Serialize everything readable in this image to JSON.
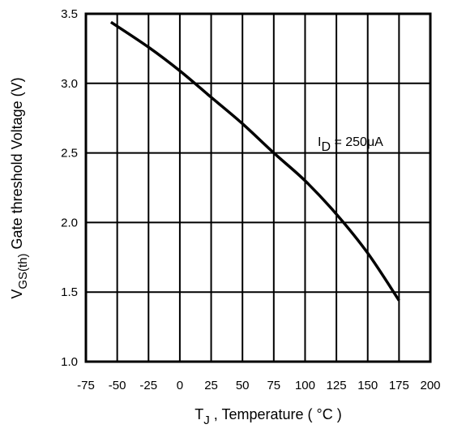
{
  "chart_data": {
    "type": "line",
    "xlabel_main": "T",
    "xlabel_sub": "J",
    "xlabel_rest": " , Temperature ( °C )",
    "ylabel_main": "V",
    "ylabel_sub": "GS(th)",
    "ylabel_rest": " Gate threshold Voltage (V)",
    "xlim": [
      -75,
      200
    ],
    "ylim": [
      1.0,
      3.5
    ],
    "x_ticks": [
      -75,
      -50,
      -25,
      0,
      25,
      50,
      75,
      100,
      125,
      150,
      175,
      200
    ],
    "y_ticks": [
      1.0,
      1.5,
      2.0,
      2.5,
      3.0,
      3.5
    ],
    "y_tick_labels": [
      "1.0",
      "1.5",
      "2.0",
      "2.5",
      "3.0",
      "3.5"
    ],
    "grid": true,
    "series": [
      {
        "x": [
          -55,
          -25,
          0,
          25,
          50,
          75,
          100,
          125,
          150,
          175
        ],
        "y": [
          3.44,
          3.26,
          3.09,
          2.9,
          2.71,
          2.5,
          2.3,
          2.06,
          1.78,
          1.44
        ]
      }
    ],
    "annotation": {
      "main": "I",
      "sub": "D",
      "rest": " = 250μA"
    }
  }
}
